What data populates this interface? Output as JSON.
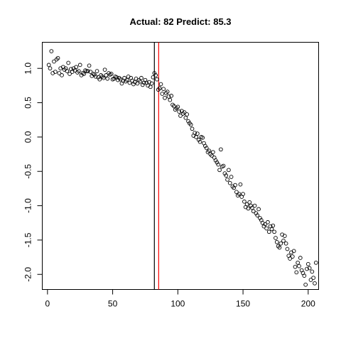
{
  "chart_data": {
    "type": "scatter",
    "title": "Actual: 82 Predict: 85.3",
    "xlabel": "",
    "ylabel": "",
    "xlim": [
      -4,
      208
    ],
    "ylim": [
      -2.22,
      1.38
    ],
    "x_ticks": [
      0,
      50,
      100,
      150,
      200
    ],
    "y_ticks": [
      -2.0,
      -1.5,
      -1.0,
      -0.5,
      0.0,
      0.5,
      1.0
    ],
    "x_tick_labels": [
      "0",
      "50",
      "100",
      "150",
      "200"
    ],
    "y_tick_labels": [
      "-2.0",
      "-1.5",
      "-1.0",
      "-0.5",
      "0.0",
      "0.5",
      "1.0"
    ],
    "vlines": [
      {
        "x": 82,
        "color": "#000000"
      },
      {
        "x": 85.3,
        "color": "#ff0000"
      }
    ],
    "y": [
      1.05,
      1.0,
      1.25,
      0.93,
      1.1,
      0.95,
      1.13,
      1.15,
      0.93,
      1.0,
      0.9,
      1.02,
      0.98,
      1.0,
      0.96,
      1.08,
      0.92,
      0.99,
      0.95,
      1.0,
      0.97,
      1.02,
      0.94,
      0.96,
      1.05,
      0.9,
      0.93,
      0.92,
      0.97,
      0.96,
      0.96,
      1.04,
      0.95,
      0.89,
      0.92,
      0.91,
      0.88,
      0.96,
      0.87,
      0.84,
      0.9,
      0.88,
      0.86,
      0.98,
      0.9,
      0.85,
      0.93,
      0.91,
      0.92,
      0.84,
      0.85,
      0.88,
      0.87,
      0.83,
      0.86,
      0.84,
      0.78,
      0.82,
      0.86,
      0.81,
      0.83,
      0.88,
      0.79,
      0.86,
      0.82,
      0.77,
      0.8,
      0.85,
      0.78,
      0.83,
      0.81,
      0.86,
      0.76,
      0.79,
      0.83,
      0.79,
      0.75,
      0.8,
      0.73,
      0.78,
      0.87,
      0.93,
      0.9,
      0.84,
      0.69,
      0.71,
      0.77,
      0.63,
      0.7,
      0.57,
      0.64,
      0.66,
      0.59,
      0.54,
      0.6,
      0.47,
      0.45,
      0.4,
      0.42,
      0.44,
      0.37,
      0.31,
      0.38,
      0.34,
      0.36,
      0.28,
      0.33,
      0.23,
      0.2,
      0.18,
      0.12,
      0.02,
      0.06,
      0.0,
      0.05,
      -0.04,
      -0.07,
      0.0,
      -0.01,
      -0.09,
      -0.13,
      -0.16,
      -0.22,
      -0.2,
      -0.25,
      -0.27,
      -0.22,
      -0.3,
      -0.34,
      -0.37,
      -0.4,
      -0.48,
      -0.18,
      -0.43,
      -0.42,
      -0.53,
      -0.56,
      -0.62,
      -0.48,
      -0.67,
      -0.58,
      -0.72,
      -0.74,
      -0.7,
      -0.8,
      -0.85,
      -0.83,
      -0.69,
      -0.87,
      -0.83,
      -0.94,
      -1.02,
      -0.98,
      -1.04,
      -0.95,
      -1.0,
      -1.03,
      -1.08,
      -1.0,
      -1.11,
      -1.14,
      -1.05,
      -1.18,
      -1.21,
      -1.25,
      -1.3,
      -1.27,
      -1.33,
      -1.24,
      -1.38,
      -1.3,
      -1.34,
      -1.29,
      -1.38,
      -1.47,
      -1.53,
      -1.59,
      -1.61,
      -1.55,
      -1.42,
      -1.51,
      -1.44,
      -1.55,
      -1.63,
      -1.73,
      -1.77,
      -1.68,
      -1.74,
      -1.66,
      -1.89,
      -1.97,
      -1.83,
      -1.88,
      -1.76,
      -1.94,
      -1.98,
      -2.02,
      -2.15,
      -1.92,
      -1.85,
      -1.91,
      -2.08,
      -1.96,
      -2.05,
      -2.13,
      -1.83
    ]
  }
}
